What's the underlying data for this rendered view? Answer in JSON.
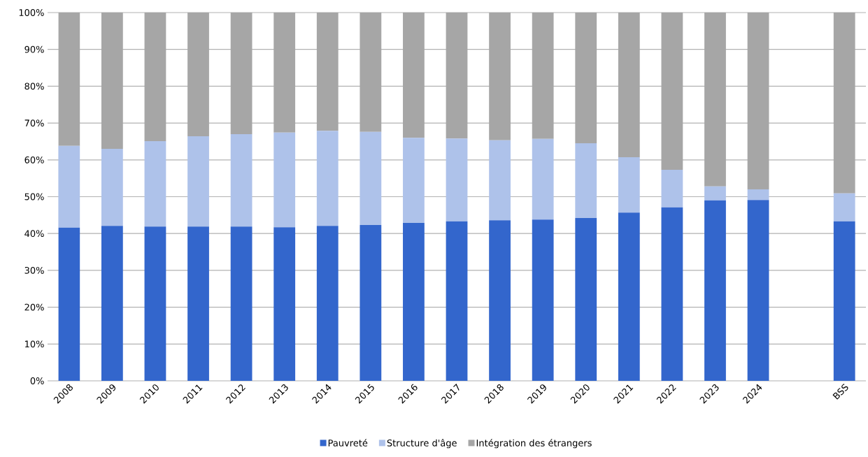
{
  "chart_data": {
    "type": "bar",
    "stacked": true,
    "categories": [
      "2008",
      "2009",
      "2010",
      "2011",
      "2012",
      "2013",
      "2014",
      "2015",
      "2016",
      "2017",
      "2018",
      "2019",
      "2020",
      "2021",
      "2022",
      "2023",
      "2024",
      null,
      "BSS"
    ],
    "series": [
      {
        "name": "Pauvreté",
        "color": "#3366cc",
        "values": [
          41.6,
          42.1,
          41.9,
          41.9,
          41.9,
          41.7,
          42.1,
          42.3,
          42.9,
          43.3,
          43.6,
          43.8,
          44.2,
          45.7,
          47.1,
          49.0,
          49.1,
          null,
          43.3
        ]
      },
      {
        "name": "Structure d'âge",
        "color": "#aec2ea",
        "values": [
          22.2,
          20.9,
          23.2,
          24.5,
          25.1,
          25.7,
          25.8,
          25.3,
          23.1,
          22.5,
          21.7,
          21.9,
          20.3,
          15.0,
          10.2,
          3.8,
          2.9,
          null,
          7.6
        ]
      },
      {
        "name": "Intégration des étrangers",
        "color": "#a6a6a6",
        "values": [
          36.2,
          37.0,
          34.9,
          33.6,
          33.0,
          32.6,
          32.1,
          32.4,
          34.0,
          34.2,
          34.7,
          34.3,
          35.5,
          39.3,
          42.7,
          47.2,
          48.0,
          null,
          49.1
        ]
      }
    ],
    "ylim": [
      0,
      100
    ],
    "yticks": [
      {
        "value": 0,
        "label": "0%"
      },
      {
        "value": 10,
        "label": "10%"
      },
      {
        "value": 20,
        "label": "20%"
      },
      {
        "value": 30,
        "label": "30%"
      },
      {
        "value": 40,
        "label": "40%"
      },
      {
        "value": 50,
        "label": "50%"
      },
      {
        "value": 60,
        "label": "60%"
      },
      {
        "value": 70,
        "label": "70%"
      },
      {
        "value": 80,
        "label": "80%"
      },
      {
        "value": 90,
        "label": "90%"
      },
      {
        "value": 100,
        "label": "100%"
      }
    ],
    "grid": "y",
    "legend": "bottom"
  }
}
